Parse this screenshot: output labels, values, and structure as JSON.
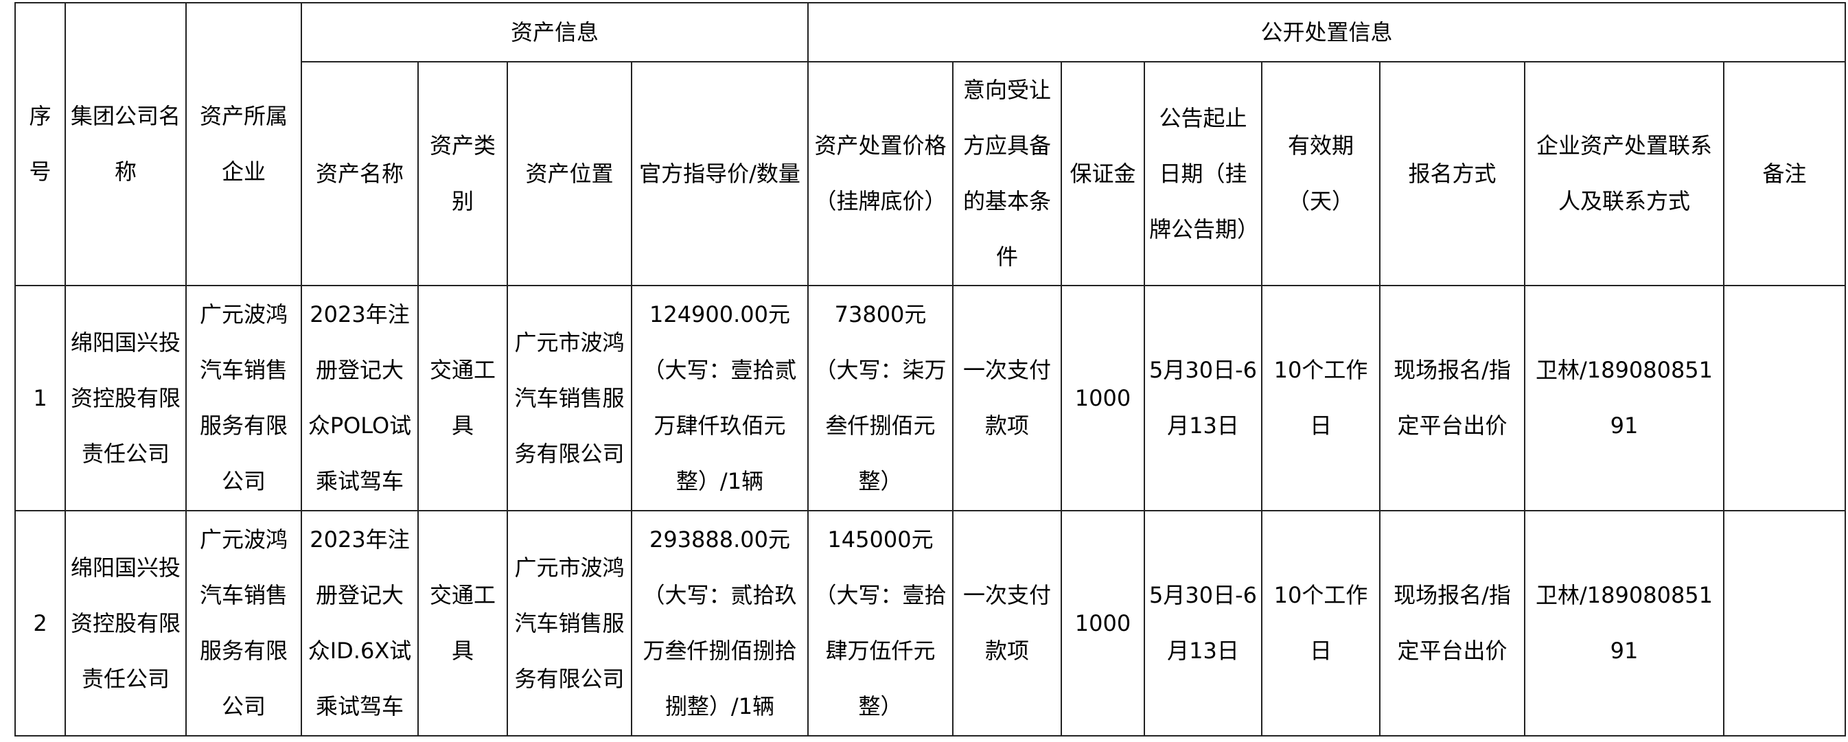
{
  "group_headers": {
    "asset_info": "资产信息",
    "disposal_info": "公开处置信息"
  },
  "columns": {
    "index": "序号",
    "group_company": "集团公司名称",
    "owner_company": "资产所属企业",
    "asset_name": "资产名称",
    "asset_type": "资产类别",
    "asset_location": "资产位置",
    "guide_price": "官方指导价/数量",
    "disposal_price": "资产处置价格（挂牌底价）",
    "buyer_conditions": "意向受让方应具备的基本条件",
    "deposit": "保证金",
    "notice_period": "公告起止日期（挂牌公告期）",
    "validity": "有效期（天）",
    "registration": "报名方式",
    "contact": "企业资产处置联系人及联系方式",
    "remarks": "备注"
  },
  "rows": [
    {
      "index": "1",
      "group_company": "绵阳国兴投资控股有限责任公司",
      "owner_company": "广元波鸿汽车销售服务有限公司",
      "asset_name": "2023年注册登记大众POLO试乘试驾车",
      "asset_type": "交通工具",
      "asset_location": "广元市波鸿汽车销售服务有限公司",
      "guide_price": "124900.00元（大写：壹拾贰万肆仟玖佰元整）/1辆",
      "disposal_price": "73800元（大写：柒万叁仟捌佰元整）",
      "buyer_conditions": "一次支付款项",
      "deposit": "1000",
      "notice_period": "5月30日-6月13日",
      "validity": "10个工作日",
      "registration": "现场报名/指定平台出价",
      "contact": "卫林/18908085191",
      "remarks": ""
    },
    {
      "index": "2",
      "group_company": "绵阳国兴投资控股有限责任公司",
      "owner_company": "广元波鸿汽车销售服务有限公司",
      "asset_name": "2023年注册登记大众ID.6X试乘试驾车",
      "asset_type": "交通工具",
      "asset_location": "广元市波鸿汽车销售服务有限公司",
      "guide_price": "293888.00元（大写：贰拾玖万叁仟捌佰捌拾捌整）/1辆",
      "disposal_price": "145000元（大写：壹拾肆万伍仟元整）",
      "buyer_conditions": "一次支付款项",
      "deposit": "1000",
      "notice_period": "5月30日-6月13日",
      "validity": "10个工作日",
      "registration": "现场报名/指定平台出价",
      "contact": "卫林/18908085191",
      "remarks": ""
    }
  ]
}
